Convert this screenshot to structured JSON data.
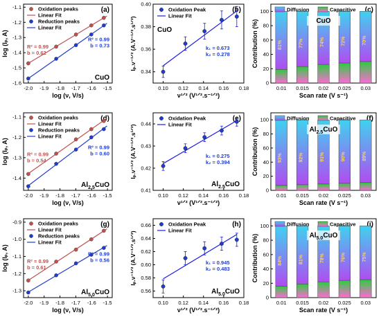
{
  "colors": {
    "oxidation": "#c0504d",
    "reduction": "#1f3ccf",
    "fit_line": "#1a1ae6",
    "diffusion_top": "#3fd2f0",
    "diffusion_bottom": "#b04df0",
    "capacitive_top": "#2ecc40",
    "capacitive_bottom": "#ff6ad5",
    "sample_label_bg": "#ffffff"
  },
  "chart_data": [
    {
      "panel": "a",
      "type": "line",
      "xlabel": "log (ν, V/s)",
      "ylabel": "log (Iₚ, A)",
      "xlim": [
        -2.03,
        -1.47
      ],
      "ylim": [
        -1.6,
        -1.08
      ],
      "xticks": [
        "-2.0",
        "-1.9",
        "-1.8",
        "-1.7",
        "-1.6",
        "-1.5"
      ],
      "yticks": [
        "-1.6",
        "-1.5",
        "-1.4",
        "-1.3",
        "-1.2",
        "-1.1"
      ],
      "legend": [
        "Oxidation peaks",
        "Linear Fit",
        "Reduction peaks",
        "Linear Fit"
      ],
      "sample_label": "CuO",
      "annotations": [
        {
          "text": "R² = 0.99",
          "series": "oxidation"
        },
        {
          "text": "b = 0.62",
          "series": "oxidation"
        },
        {
          "text": "R² = 0.99",
          "series": "reduction"
        },
        {
          "text": "b = 0.73",
          "series": "reduction"
        }
      ],
      "series": [
        {
          "name": "Oxidation peaks",
          "x": [
            -2.0,
            -1.824,
            -1.699,
            -1.602,
            -1.523
          ],
          "y": [
            -1.47,
            -1.36,
            -1.28,
            -1.22,
            -1.17
          ]
        },
        {
          "name": "Reduction peaks",
          "x": [
            -2.0,
            -1.824,
            -1.699,
            -1.602,
            -1.523
          ],
          "y": [
            -1.57,
            -1.44,
            -1.35,
            -1.28,
            -1.22
          ]
        }
      ]
    },
    {
      "panel": "b",
      "type": "scatter",
      "xlabel": "ν¹ᐟ² (V¹ᐟ².s⁻¹ᐟ²)",
      "ylabel": "Iₚ.ν⁻¹ᐟ² (A.V⁻¹ᐟ².s¹ᐟ²)",
      "xlim": [
        0.09,
        0.18
      ],
      "ylim": [
        0.33,
        0.4
      ],
      "xticks": [
        "0.10",
        "0.12",
        "0.14",
        "0.16",
        "0.18"
      ],
      "yticks": [
        "0.34",
        "0.36",
        "0.38",
        "0.40"
      ],
      "legend": [
        "Oxidation Peak",
        "Linear Fit"
      ],
      "sample_label": "CuO",
      "annotations": [
        {
          "text": "k₁ = 0.673"
        },
        {
          "text": "k₂ = 0.278"
        }
      ],
      "series": [
        {
          "name": "Oxidation Peak",
          "x": [
            0.1,
            0.122,
            0.141,
            0.158,
            0.173
          ],
          "y": [
            0.34,
            0.365,
            0.376,
            0.386,
            0.389
          ],
          "err": [
            0.005,
            0.006,
            0.007,
            0.008,
            0.009
          ]
        }
      ],
      "fit": {
        "slope": 0.673,
        "intercept": 0.278
      }
    },
    {
      "panel": "c",
      "type": "bar",
      "xlabel": "Scan rate (V s⁻¹)",
      "ylabel": "Contribution (%)",
      "ylim": [
        0,
        100
      ],
      "yticks": [
        "0",
        "20",
        "40",
        "60",
        "80",
        "100"
      ],
      "categories": [
        "0.01",
        "0.015",
        "0.02",
        "0.025",
        "0.03"
      ],
      "legend": [
        "Diffusion",
        "Capacitive"
      ],
      "sample_label": "CuO",
      "series": [
        {
          "name": "Diffusion",
          "values": [
            81,
            77,
            74,
            72,
            70
          ]
        },
        {
          "name": "Capacitive",
          "values": [
            19,
            23,
            26,
            28,
            30
          ]
        }
      ],
      "value_labels": [
        "81%",
        "77%",
        "74%",
        "72%",
        "70%"
      ]
    },
    {
      "panel": "d",
      "type": "line",
      "xlabel": "log (ν, V/s)",
      "ylabel": "log (Iₚ, A)",
      "xlim": [
        -2.03,
        -1.47
      ],
      "ylim": [
        -1.46,
        -1.08
      ],
      "xticks": [
        "-2.0",
        "-1.9",
        "-1.8",
        "-1.7",
        "-1.6",
        "-1.5"
      ],
      "yticks": [
        "-1.4",
        "-1.3",
        "-1.2",
        "-1.1"
      ],
      "legend": [
        "Oxidation peaks",
        "Linear Fit",
        "Reduction peaks",
        "Linear Fit"
      ],
      "sample_label": "Al2.5CuO",
      "annotations": [
        {
          "text": "R² = 0.99",
          "series": "oxidation"
        },
        {
          "text": "b = 0.54",
          "series": "oxidation"
        },
        {
          "text": "R² = 0.99",
          "series": "reduction"
        },
        {
          "text": "b = 0.60",
          "series": "reduction"
        }
      ],
      "series": [
        {
          "name": "Oxidation peaks",
          "x": [
            -2.0,
            -1.824,
            -1.699,
            -1.602,
            -1.523
          ],
          "y": [
            -1.38,
            -1.28,
            -1.21,
            -1.16,
            -1.12
          ]
        },
        {
          "name": "Reduction peaks",
          "x": [
            -2.0,
            -1.824,
            -1.699,
            -1.602,
            -1.523
          ],
          "y": [
            -1.44,
            -1.33,
            -1.26,
            -1.2,
            -1.16
          ]
        }
      ]
    },
    {
      "panel": "e",
      "type": "scatter",
      "xlabel": "ν¹ᐟ² (V¹ᐟ².s⁻¹ᐟ²)",
      "ylabel": "Iₚ.ν⁻¹ᐟ² (A.V⁻¹ᐟ².s¹ᐟ²)",
      "xlim": [
        0.09,
        0.18
      ],
      "ylim": [
        0.41,
        0.445
      ],
      "xticks": [
        "0.10",
        "0.12",
        "0.14",
        "0.16",
        "0.18"
      ],
      "yticks": [
        "0.41",
        "0.42",
        "0.43",
        "0.44"
      ],
      "legend": [
        "Oxidation Peak",
        "Linear Fit"
      ],
      "sample_label": "Al2.5CuO",
      "annotations": [
        {
          "text": "k₁ = 0.275"
        },
        {
          "text": "k₂ = 0.394"
        }
      ],
      "series": [
        {
          "name": "Oxidation Peak",
          "x": [
            0.1,
            0.122,
            0.141,
            0.158,
            0.173
          ],
          "y": [
            0.421,
            0.429,
            0.434,
            0.437,
            0.441
          ],
          "err": [
            0.002,
            0.002,
            0.002,
            0.002,
            0.002
          ]
        }
      ],
      "fit": {
        "slope": 0.275,
        "intercept": 0.394
      }
    },
    {
      "panel": "f",
      "type": "bar",
      "xlabel": "Scan rate (V s⁻¹)",
      "ylabel": "Contribution (%)",
      "ylim": [
        0,
        100
      ],
      "yticks": [
        "0",
        "20",
        "40",
        "60",
        "80",
        "100"
      ],
      "categories": [
        "0.01",
        "0.015",
        "0.02",
        "0.025",
        "0.03"
      ],
      "legend": [
        "Diffusion",
        "Capacitive"
      ],
      "sample_label": "Al2.5CuO",
      "series": [
        {
          "name": "Diffusion",
          "values": [
            93,
            92,
            91,
            90,
            89
          ]
        },
        {
          "name": "Capacitive",
          "values": [
            7,
            8,
            9,
            10,
            11
          ]
        }
      ],
      "value_labels": [
        "93%",
        "92%",
        "91%",
        "90%",
        "89%"
      ]
    },
    {
      "panel": "g",
      "type": "line",
      "xlabel": "log (ν, V/s)",
      "ylabel": "log (Iₚ, A)",
      "xlim": [
        -2.03,
        -1.47
      ],
      "ylim": [
        -1.34,
        -0.88
      ],
      "xticks": [
        "-2.0",
        "-1.9",
        "-1.8",
        "-1.7",
        "-1.6",
        "-1.5"
      ],
      "yticks": [
        "-1.3",
        "-1.2",
        "-1.1",
        "-1.0",
        "-0.9"
      ],
      "legend": [
        "Oxidation peaks",
        "Linear Fit",
        "Reduction peaks",
        "Linear Fit"
      ],
      "sample_label": "Al5.0CuO",
      "annotations": [
        {
          "text": "R² = 0.99",
          "series": "oxidation"
        },
        {
          "text": "b = 0.61",
          "series": "oxidation"
        },
        {
          "text": "R² = 0.99",
          "series": "reduction"
        },
        {
          "text": "b = 0.56",
          "series": "reduction"
        }
      ],
      "series": [
        {
          "name": "Oxidation peaks",
          "x": [
            -2.0,
            -1.824,
            -1.699,
            -1.602,
            -1.523
          ],
          "y": [
            -1.24,
            -1.13,
            -1.06,
            -1.0,
            -0.95
          ]
        },
        {
          "name": "Reduction peaks",
          "x": [
            -2.0,
            -1.824,
            -1.699,
            -1.602,
            -1.523
          ],
          "y": [
            -1.31,
            -1.21,
            -1.14,
            -1.09,
            -1.05
          ]
        }
      ]
    },
    {
      "panel": "h",
      "type": "scatter",
      "xlabel": "ν¹ᐟ² (V¹ᐟ².s⁻¹ᐟ²)",
      "ylabel": "Iₚ.ν⁻¹ᐟ² (A.V⁻¹ᐟ².s¹ᐟ²)",
      "xlim": [
        0.09,
        0.18
      ],
      "ylim": [
        0.55,
        0.67
      ],
      "xticks": [
        "0.10",
        "0.12",
        "0.14",
        "0.16",
        "0.18"
      ],
      "yticks": [
        "0.56",
        "0.58",
        "0.60",
        "0.62",
        "0.64",
        "0.66"
      ],
      "legend": [
        "Oxidation Peak",
        "Linear Fit"
      ],
      "sample_label": "Al5.0CuO",
      "annotations": [
        {
          "text": "k₁ = 0.945"
        },
        {
          "text": "k₂ = 0.483"
        }
      ],
      "series": [
        {
          "name": "Oxidation Peak",
          "x": [
            0.1,
            0.122,
            0.141,
            0.158,
            0.173
          ],
          "y": [
            0.567,
            0.61,
            0.625,
            0.632,
            0.638
          ],
          "err": [
            0.01,
            0.01,
            0.01,
            0.01,
            0.01
          ]
        }
      ],
      "fit": {
        "slope": 0.945,
        "intercept": 0.483
      }
    },
    {
      "panel": "i",
      "type": "bar",
      "xlabel": "Scan rate (V s⁻¹)",
      "ylabel": "Contribution (%)",
      "ylim": [
        0,
        100
      ],
      "yticks": [
        "0",
        "20",
        "40",
        "60",
        "80",
        "100"
      ],
      "categories": [
        "0.01",
        "0.015",
        "0.02",
        "0.025",
        "0.03"
      ],
      "legend": [
        "Diffusion",
        "Capacitive"
      ],
      "sample_label": "Al5.0CuO",
      "series": [
        {
          "name": "Diffusion",
          "values": [
            84,
            81,
            78,
            76,
            75
          ]
        },
        {
          "name": "Capacitive",
          "values": [
            16,
            19,
            22,
            24,
            25
          ]
        }
      ],
      "value_labels": [
        "84%",
        "81%",
        "78%",
        "76%",
        "75%"
      ]
    }
  ]
}
